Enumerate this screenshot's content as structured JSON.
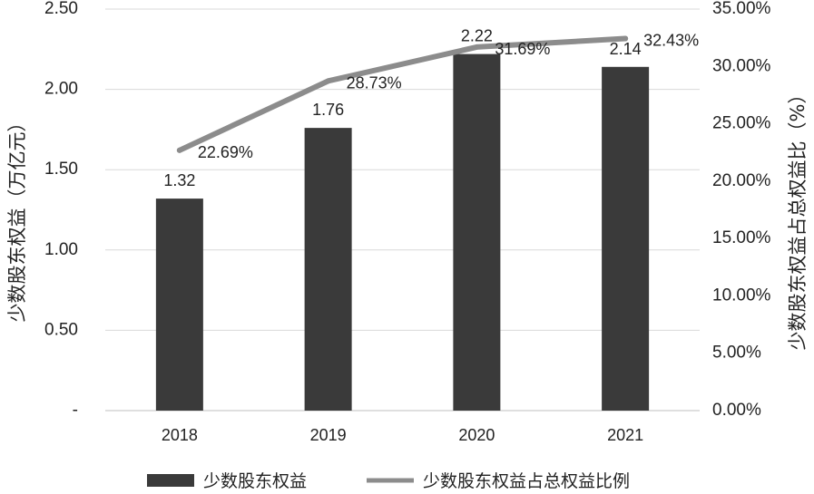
{
  "chart_data": {
    "type": "bar",
    "categories": [
      "2018",
      "2019",
      "2020",
      "2021"
    ],
    "series": [
      {
        "name": "少数股东权益",
        "type": "bar",
        "axis": "left",
        "values": [
          1.32,
          1.76,
          2.22,
          2.14
        ],
        "labels": [
          "1.32",
          "1.76",
          "2.22",
          "2.14"
        ],
        "color": "#3a3a3a"
      },
      {
        "name": "少数股东权益占总权益比例",
        "type": "line",
        "axis": "right",
        "values": [
          22.69,
          28.73,
          31.69,
          32.43
        ],
        "labels": [
          "22.69%",
          "28.73%",
          "31.69%",
          "32.43%"
        ],
        "color": "#8c8c8c"
      }
    ],
    "y_left": {
      "label": "少数股东权益（万亿元）",
      "min": 0,
      "max": 2.5,
      "ticks": [
        0,
        0.5,
        1.0,
        1.5,
        2.0,
        2.5
      ],
      "tick_labels": [
        "-",
        "0.50",
        "1.00",
        "1.50",
        "2.00",
        "2.50"
      ]
    },
    "y_right": {
      "label": "少数股东权益占总权益比（%）",
      "min": 0,
      "max": 35,
      "ticks": [
        0,
        5,
        10,
        15,
        20,
        25,
        30,
        35
      ],
      "tick_labels": [
        "0.00%",
        "5.00%",
        "10.00%",
        "15.00%",
        "20.00%",
        "25.00%",
        "30.00%",
        "35.00%"
      ]
    },
    "grid": true,
    "legend": "bottom"
  }
}
